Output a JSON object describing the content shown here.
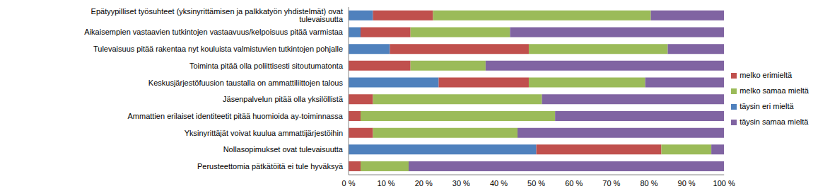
{
  "chart_data": {
    "type": "bar",
    "orientation": "horizontal",
    "stacked": true,
    "grid": false,
    "legend": "right",
    "categories": [
      "Epätyypilliset työsuhteet (yksinyrittämisen ja palkkatyön yhdistelmät) ovat tulevaisuutta",
      "Aikaisempien vastaavien tutkintojen vastaavuus/kelpoisuus pitää varmistaa",
      "Tulevaisuus pitää rakentaa nyt kouluista valmistuvien tutkintojen pohjalle",
      "Toiminta pitää olla poliittisesti sitoutumatonta",
      "Keskusjärjestöfuusion taustalla on ammattiliittojen talous",
      "Jäsenpalvelun pitää olla yksilöllistä",
      "Ammattien erilaiset identiteetit pitää huomioida ay-toiminnassa",
      "Yksinyrittäjät voivat kuulua ammattijärjestöihin",
      "Nollasopimukset ovat tulevaisuutta",
      "Perusteettomia pätkätöitä ei tule hyväksyä"
    ],
    "series": [
      {
        "name": "täysin eri mieltä",
        "color": "#4F81BD",
        "values": [
          6.5,
          3.2,
          11,
          0,
          24,
          0,
          0,
          0,
          50,
          0
        ]
      },
      {
        "name": "melko erimieltä",
        "color": "#C0504D",
        "values": [
          16,
          13.3,
          37,
          16.5,
          24,
          6.5,
          3.2,
          6.5,
          33.3,
          3.2
        ]
      },
      {
        "name": "melko samaa mieltä",
        "color": "#9BBB59",
        "values": [
          58,
          26.5,
          37,
          20,
          31,
          45,
          51.8,
          38.5,
          13.3,
          12.8
        ]
      },
      {
        "name": "täysin samaa mieltä",
        "color": "#8064A2",
        "values": [
          19.5,
          57,
          15,
          63.5,
          21,
          48.5,
          45,
          55,
          3.4,
          84
        ]
      }
    ],
    "xlim": [
      0,
      100
    ],
    "xticks": [
      {
        "value": 0,
        "label": "0 %"
      },
      {
        "value": 10,
        "label": "10 %"
      },
      {
        "value": 20,
        "label": "20 %"
      },
      {
        "value": 30,
        "label": "30 %"
      },
      {
        "value": 40,
        "label": "40 %"
      },
      {
        "value": 50,
        "label": "50 %"
      },
      {
        "value": 60,
        "label": "60 %"
      },
      {
        "value": 70,
        "label": "70 %"
      },
      {
        "value": 80,
        "label": "80 %"
      },
      {
        "value": 90,
        "label": "90 %"
      },
      {
        "value": 100,
        "label": "100 %"
      }
    ]
  }
}
